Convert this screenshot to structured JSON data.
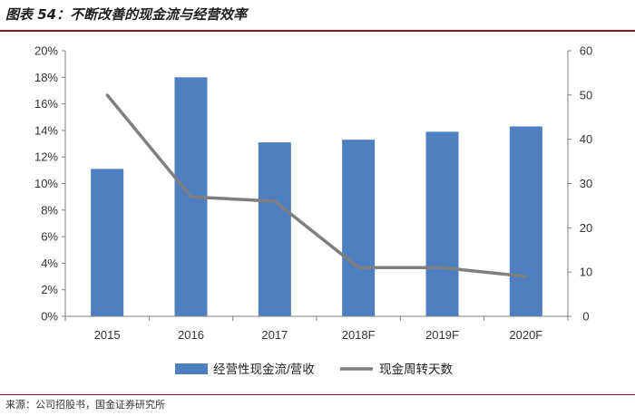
{
  "header": {
    "title": "图表 54：不断改善的现金流与经营效率"
  },
  "footer": {
    "source": "来源：公司招股书，国金证券研究所"
  },
  "colors": {
    "bar": "#4e7fc0",
    "line": "#7f7f7f",
    "rule": "#8a1a1a",
    "axis": "#808080"
  },
  "chart_data": {
    "type": "bar+line",
    "categories": [
      "2015",
      "2016",
      "2017",
      "2018F",
      "2019F",
      "2020F"
    ],
    "series": [
      {
        "name": "经营性现金流/营收",
        "type": "bar",
        "axis": "left",
        "values": [
          0.111,
          0.18,
          0.131,
          0.133,
          0.139,
          0.143
        ]
      },
      {
        "name": "现金周转天数",
        "type": "line",
        "axis": "right",
        "values": [
          50,
          27,
          26,
          11,
          11,
          9
        ]
      }
    ],
    "y_left": {
      "min": 0,
      "max": 0.2,
      "ticks": [
        "0%",
        "2%",
        "4%",
        "6%",
        "8%",
        "10%",
        "12%",
        "14%",
        "16%",
        "18%",
        "20%"
      ]
    },
    "y_right": {
      "min": 0,
      "max": 60,
      "ticks": [
        "0",
        "10",
        "20",
        "30",
        "40",
        "50",
        "60"
      ]
    },
    "grid": false,
    "legend_position": "bottom"
  }
}
